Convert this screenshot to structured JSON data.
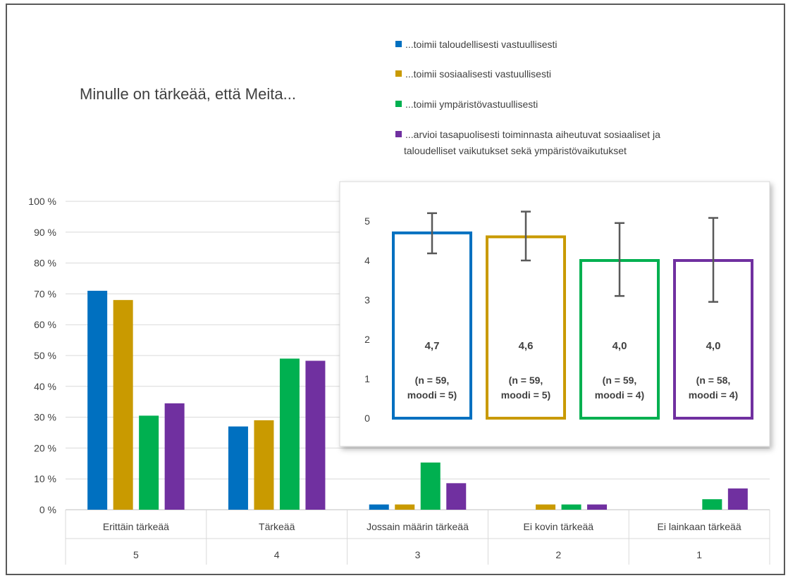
{
  "chart_data": [
    {
      "type": "bar",
      "title": "Minulle on tärkeää, että Meita...",
      "y_tick_labels": [
        "0 %",
        "10 %",
        "20 %",
        "30 %",
        "40 %",
        "50 %",
        "60 %",
        "70 %",
        "80 %",
        "90 %",
        "100 %"
      ],
      "ylim": [
        0,
        100
      ],
      "grid": true,
      "legend_position": "top-right",
      "categories": [
        {
          "label": "Erittäin tärkeää",
          "code": "5"
        },
        {
          "label": "Tärkeää",
          "code": "4"
        },
        {
          "label": "Jossain määrin tärkeää",
          "code": "3"
        },
        {
          "label": "Ei kovin tärkeää",
          "code": "2"
        },
        {
          "label": "Ei lainkaan tärkeää",
          "code": "1"
        }
      ],
      "series": [
        {
          "name": "...toimii taloudellisesti vastuullisesti",
          "color": "#0070C0",
          "values": [
            71,
            27,
            1.7,
            0,
            0
          ]
        },
        {
          "name": "...toimii sosiaalisesti vastuullisesti",
          "color": "#C99A00",
          "values": [
            68,
            29,
            1.7,
            1.7,
            0
          ]
        },
        {
          "name": "...toimii ympäristövastuullisesti",
          "color": "#00B050",
          "values": [
            30.5,
            49,
            15.3,
            1.7,
            3.4
          ]
        },
        {
          "name": "...arvioi tasapuolisesti toiminnasta aiheutuvat sosiaaliset ja taloudelliset vaikutukset sekä ympäristövaikutukset",
          "color": "#7030A0",
          "values": [
            34.5,
            48.3,
            8.6,
            1.7,
            6.9
          ]
        }
      ]
    },
    {
      "type": "bar",
      "subtype": "mean-with-error-bars",
      "ylim": [
        0,
        5
      ],
      "y_tick_labels": [
        "0",
        "1",
        "2",
        "3",
        "4",
        "5"
      ],
      "bars": [
        {
          "value": 4.7,
          "value_label": "4,7",
          "n_label": "(n = 59,",
          "mode_label": "moodi = 5)",
          "error_low": 4.18,
          "error_high": 5.2,
          "color": "#0070C0"
        },
        {
          "value": 4.6,
          "value_label": "4,6",
          "n_label": "(n = 59,",
          "mode_label": "moodi = 5)",
          "error_low": 4.0,
          "error_high": 5.24,
          "color": "#C99A00"
        },
        {
          "value": 4.0,
          "value_label": "4,0",
          "n_label": "(n = 59,",
          "mode_label": "moodi = 4)",
          "error_low": 3.1,
          "error_high": 4.95,
          "color": "#00B050"
        },
        {
          "value": 4.0,
          "value_label": "4,0",
          "n_label": "(n = 58,",
          "mode_label": "moodi = 4)",
          "error_low": 2.95,
          "error_high": 5.08,
          "color": "#7030A0"
        }
      ]
    }
  ]
}
